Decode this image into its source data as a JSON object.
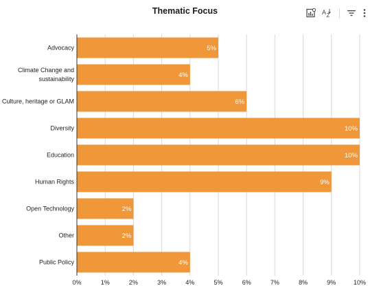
{
  "chart_data": {
    "type": "bar",
    "orientation": "horizontal",
    "title": "Thematic Focus",
    "categories": [
      [
        "Advocacy"
      ],
      [
        "Climate Change and",
        "sustainability"
      ],
      [
        "Culture, heritage or GLAM"
      ],
      [
        "Diversity"
      ],
      [
        "Education"
      ],
      [
        "Human Rights"
      ],
      [
        "Open Technology"
      ],
      [
        "Other"
      ],
      [
        "Public Policy"
      ]
    ],
    "values": [
      5,
      4,
      6,
      10,
      10,
      9,
      2,
      2,
      4
    ],
    "value_labels": [
      "5%",
      "4%",
      "6%",
      "10%",
      "10%",
      "9%",
      "2%",
      "2%",
      "4%"
    ],
    "xlim": [
      0,
      10
    ],
    "x_ticks": [
      "0%",
      "1%",
      "2%",
      "3%",
      "4%",
      "5%",
      "6%",
      "7%",
      "8%",
      "9%",
      "10%"
    ],
    "grid": true,
    "legend": "none",
    "bar_color": "#f0973a"
  },
  "toolbar": [
    {
      "name": "chart-insights-icon"
    },
    {
      "name": "sort-az-icon"
    },
    {
      "name": "filter-icon"
    },
    {
      "name": "more-vert-icon"
    }
  ]
}
